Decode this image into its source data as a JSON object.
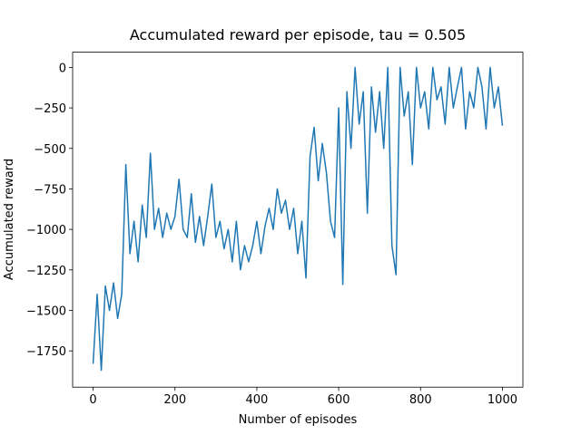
{
  "chart_data": {
    "type": "line",
    "title": "Accumulated reward per episode, tau = 0.505",
    "xlabel": "Number of episodes",
    "ylabel": "Accumulated reward",
    "color": "#1f77b4",
    "x": [
      0,
      10,
      20,
      30,
      40,
      50,
      60,
      70,
      80,
      90,
      100,
      110,
      120,
      130,
      140,
      150,
      160,
      170,
      180,
      190,
      200,
      210,
      220,
      230,
      240,
      250,
      260,
      270,
      280,
      290,
      300,
      310,
      320,
      330,
      340,
      350,
      360,
      370,
      380,
      390,
      400,
      410,
      420,
      430,
      440,
      450,
      460,
      470,
      480,
      490,
      500,
      510,
      520,
      530,
      540,
      550,
      560,
      570,
      580,
      590,
      600,
      610,
      620,
      630,
      640,
      650,
      660,
      670,
      680,
      690,
      700,
      710,
      720,
      730,
      740,
      750,
      760,
      770,
      780,
      790,
      800,
      810,
      820,
      830,
      840,
      850,
      860,
      870,
      880,
      890,
      900,
      910,
      920,
      930,
      940,
      950,
      960,
      970,
      980,
      990,
      1000
    ],
    "values": [
      -1830,
      -1400,
      -1870,
      -1350,
      -1500,
      -1330,
      -1550,
      -1400,
      -600,
      -1150,
      -950,
      -1200,
      -850,
      -1050,
      -530,
      -1000,
      -870,
      -1050,
      -900,
      -1000,
      -920,
      -690,
      -1000,
      -1050,
      -780,
      -1080,
      -920,
      -1100,
      -920,
      -720,
      -1050,
      -950,
      -1120,
      -1000,
      -1200,
      -950,
      -1250,
      -1100,
      -1200,
      -1100,
      -950,
      -1150,
      -980,
      -870,
      -1000,
      -750,
      -900,
      -820,
      -1000,
      -870,
      -1150,
      -950,
      -1300,
      -550,
      -370,
      -700,
      -470,
      -650,
      -950,
      -1050,
      -250,
      -1340,
      -150,
      -500,
      0,
      -350,
      -150,
      -900,
      -120,
      -400,
      -150,
      -500,
      0,
      -1100,
      -1280,
      0,
      -300,
      -150,
      -600,
      0,
      -250,
      -150,
      -380,
      0,
      -200,
      -120,
      -350,
      0,
      -250,
      -120,
      0,
      -380,
      -150,
      -250,
      0,
      -120,
      -380,
      0,
      -250,
      -120,
      -360
    ],
    "xlim": [
      -50,
      1050
    ],
    "ylim": [
      -1974,
      94
    ],
    "xticks": [
      0,
      200,
      400,
      600,
      800,
      1000
    ],
    "yticks": [
      0,
      {
        "value": -250,
        "label": "−250"
      },
      {
        "value": -500,
        "label": "−500"
      },
      {
        "value": -750,
        "label": "−750"
      },
      {
        "value": -1000,
        "label": "−1000"
      },
      {
        "value": -1250,
        "label": "−1250"
      },
      {
        "value": -1500,
        "label": "−1500"
      },
      {
        "value": -1750,
        "label": "−1750"
      }
    ]
  }
}
